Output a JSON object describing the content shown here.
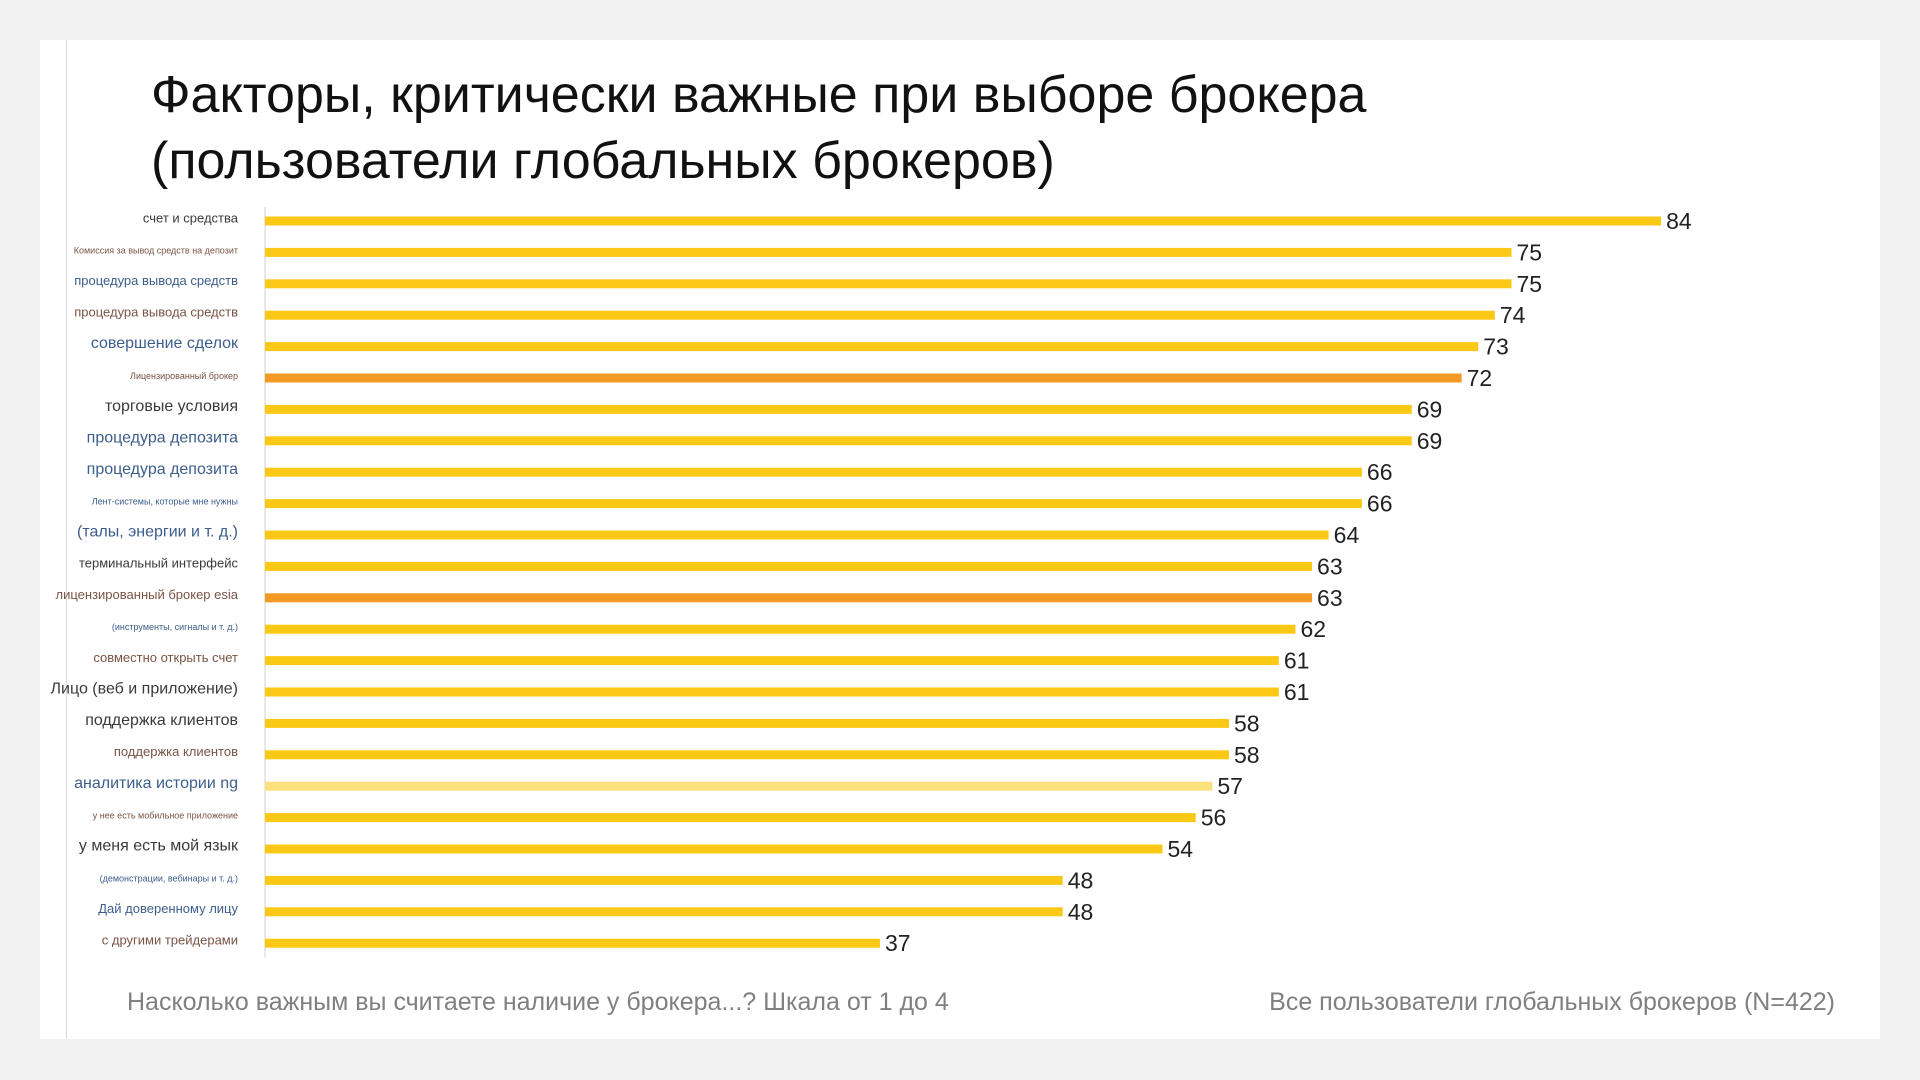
{
  "title_lines": [
    "Факторы, критически важные при выборе брокера",
    "(пользователи глобальных брокеров)"
  ],
  "footer": {
    "question": "Насколько важным вы считаете наличие у брокера...? Шкала от 1 до 4",
    "sample": "Все пользователи глобальных брокеров (N=422)"
  },
  "colors": {
    "bar_default": "#fcc816",
    "bar_highlight": "#f39a24",
    "bar_faded": "#fbe07c",
    "label_dark": "#3a3a3a",
    "label_blue": "#3c5e8c",
    "label_brown": "#7a5446",
    "value_text": "#222222"
  },
  "chart_data": {
    "type": "bar",
    "orientation": "horizontal",
    "title": "Факторы, критически важные при выборе брокера (пользователи глобальных брокеров)",
    "xlabel": "",
    "ylabel": "",
    "xlim": [
      0,
      100
    ],
    "grid": false,
    "categories": [
      "счет и средства",
      "Комиссия за вывод средств на депозит",
      "процедура вывода средств",
      "процедура вывода средств",
      "совершение сделок",
      "Лицензированный брокер",
      "торговые условия",
      "процедура депозита",
      "процедура депозита",
      "Лент-системы, которые мне нужны",
      "(талы, энергии и т. д.)",
      "терминальный интерфейс",
      "лицензированный брокер esia",
      "(инструменты, сигналы и т. д.)",
      "совместно открыть счет",
      "Лицо (веб и приложение)",
      "поддержка клиентов",
      "поддержка клиентов",
      "аналитика истории ng",
      "у нее есть мобильное приложение",
      "у меня есть мой язык",
      "(демонстрации, вебинары и т. д.)",
      "Дай доверенному лицу",
      "с другими трейдерами"
    ],
    "values": [
      84,
      75,
      75,
      74,
      73,
      72,
      69,
      69,
      66,
      66,
      64,
      63,
      63,
      62,
      61,
      61,
      58,
      58,
      57,
      56,
      54,
      48,
      48,
      37
    ],
    "bar_styles": [
      "default",
      "default",
      "default",
      "default",
      "default",
      "highlight",
      "default",
      "default",
      "default",
      "default",
      "default",
      "default",
      "highlight",
      "default",
      "default",
      "default",
      "default",
      "default",
      "faded",
      "default",
      "default",
      "default",
      "default",
      "default"
    ],
    "label_colors": [
      "dark",
      "brown",
      "blue",
      "brown",
      "blue",
      "brown",
      "dark",
      "blue",
      "blue",
      "blue",
      "blue",
      "dark",
      "brown",
      "blue",
      "brown",
      "dark",
      "dark",
      "brown",
      "blue",
      "brown",
      "dark",
      "blue",
      "blue",
      "brown"
    ],
    "label_emphasis": [
      "normal",
      "small",
      "normal",
      "normal",
      "large",
      "small",
      "large",
      "large",
      "large",
      "small",
      "large",
      "normal",
      "normal",
      "small",
      "normal",
      "large",
      "large",
      "normal",
      "large",
      "small",
      "large",
      "small",
      "normal",
      "normal"
    ]
  }
}
